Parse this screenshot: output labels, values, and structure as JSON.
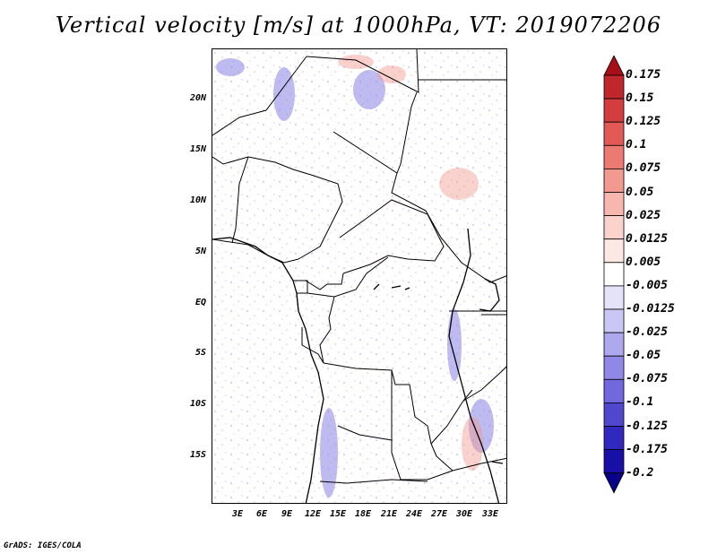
{
  "title": "Vertical velocity [m/s] at 1000hPa, VT: 2019072206",
  "lat_labels": [
    "20N",
    "15N",
    "10N",
    "5N",
    "EQ",
    "5S",
    "10S",
    "15S"
  ],
  "lon_labels": [
    "3E",
    "6E",
    "9E",
    "12E",
    "15E",
    "18E",
    "21E",
    "24E",
    "27E",
    "30E",
    "33E"
  ],
  "colorbar": {
    "labels": [
      "0.175",
      "0.15",
      "0.125",
      "0.1",
      "0.075",
      "0.05",
      "0.025",
      "0.0125",
      "0.005",
      "-0.005",
      "-0.0125",
      "-0.025",
      "-0.05",
      "-0.075",
      "-0.1",
      "-0.125",
      "-0.175",
      "-0.2"
    ],
    "colors": [
      "#a50f15",
      "#c0272d",
      "#d43d3d",
      "#e25a55",
      "#ec7a72",
      "#f29990",
      "#f7b7ae",
      "#fbd3cc",
      "#fde8e4",
      "#ffffff",
      "#e5e3fa",
      "#cbc7f4",
      "#aea8ee",
      "#9088e6",
      "#7068dc",
      "#4f48cf",
      "#3028bf",
      "#1810a6",
      "#08008a"
    ]
  },
  "footer": "GrADS: IGES/COLA"
}
